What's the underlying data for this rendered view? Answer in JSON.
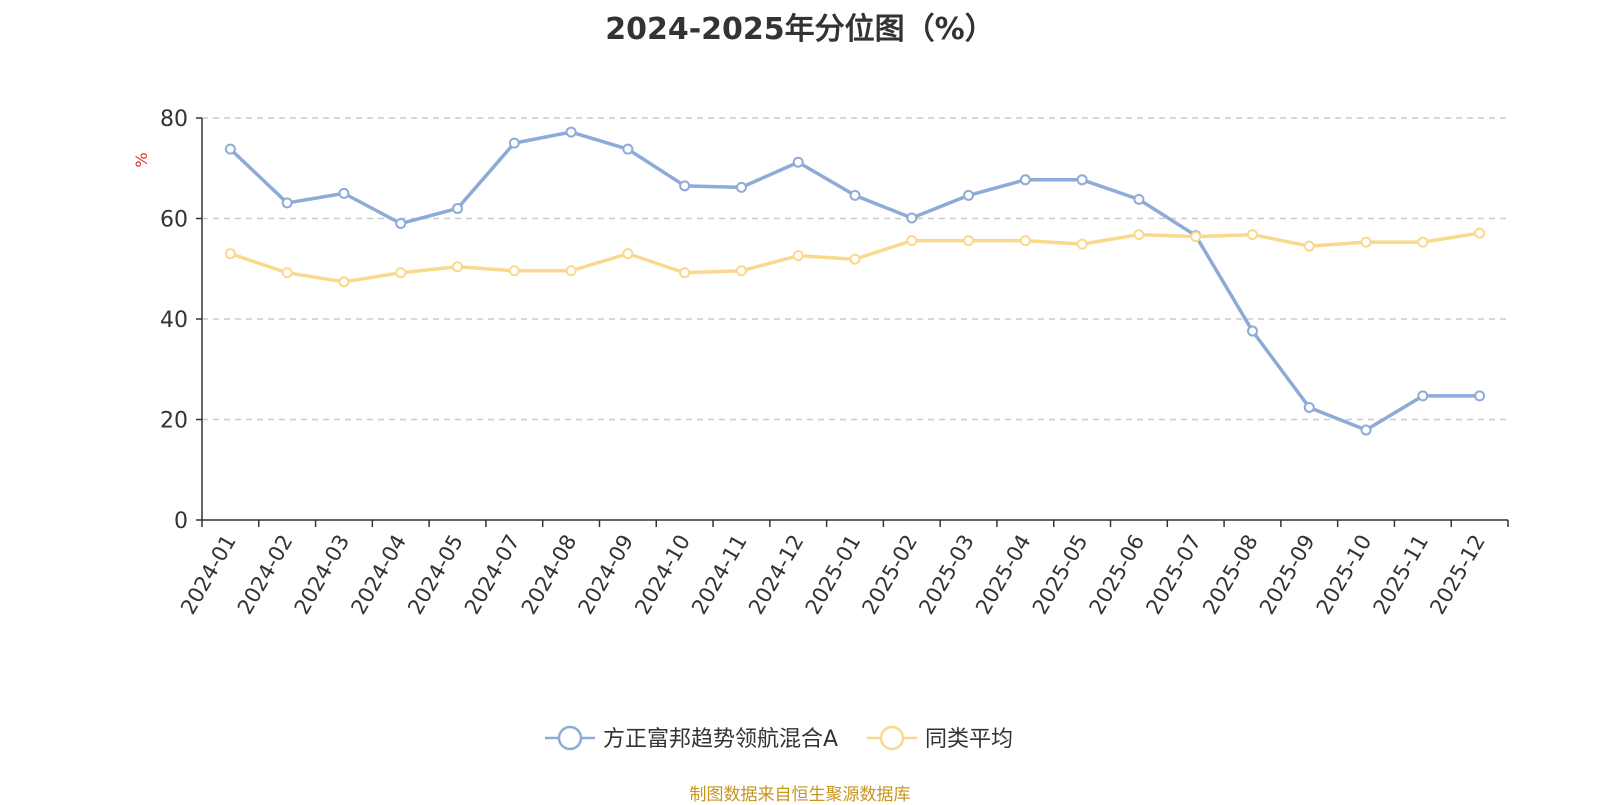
{
  "chart_data": {
    "type": "line",
    "title": "2024-2025年分位图（%）",
    "ylabel": "%",
    "xlabel": "",
    "ylim": [
      0,
      80
    ],
    "yticks": [
      0,
      20,
      40,
      60,
      80
    ],
    "grid": true,
    "legend_position": "bottom",
    "categories": [
      "2024-01",
      "2024-02",
      "2024-03",
      "2024-04",
      "2024-05",
      "2024-07",
      "2024-08",
      "2024-09",
      "2024-10",
      "2024-11",
      "2024-12",
      "2025-01",
      "2025-02",
      "2025-03",
      "2025-04",
      "2025-05",
      "2025-06",
      "2025-07",
      "2025-08",
      "2025-09",
      "2025-10",
      "2025-11",
      "2025-12"
    ],
    "series": [
      {
        "name": "方正富邦趋势领航混合A",
        "color": "#8eabd8",
        "values": [
          73.8,
          63.1,
          65.0,
          59.0,
          62.0,
          75.0,
          77.2,
          73.8,
          66.5,
          66.2,
          71.2,
          64.6,
          60.1,
          64.6,
          67.7,
          67.7,
          63.8,
          56.6,
          37.6,
          22.4,
          17.9,
          24.7,
          24.7
        ]
      },
      {
        "name": "同类平均",
        "color": "#fad98c",
        "values": [
          53.0,
          49.2,
          47.4,
          49.2,
          50.4,
          49.6,
          49.6,
          53.0,
          49.2,
          49.6,
          52.6,
          51.9,
          55.6,
          55.6,
          55.6,
          54.9,
          56.8,
          56.4,
          56.8,
          54.5,
          55.3,
          55.3,
          57.1
        ]
      }
    ]
  },
  "footer": {
    "source": "制图数据来自恒生聚源数据库"
  }
}
